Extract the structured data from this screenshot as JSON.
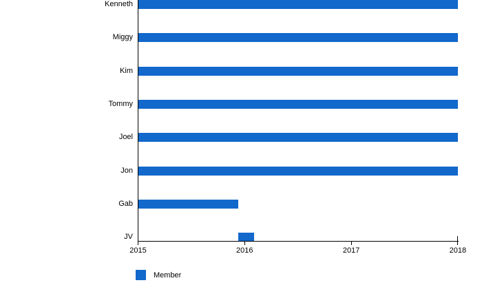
{
  "chart_data": {
    "type": "bar",
    "orientation": "horizontal",
    "title": "",
    "categories": [
      "Kenneth",
      "Miggy",
      "Kim",
      "Tommy",
      "Joel",
      "Jon",
      "Gab",
      "JV"
    ],
    "series": [
      {
        "name": "Member",
        "color": "#1268cb",
        "ranges": [
          {
            "category": "Kenneth",
            "start": 2015.0,
            "end": 2018.0
          },
          {
            "category": "Miggy",
            "start": 2015.0,
            "end": 2018.0
          },
          {
            "category": "Kim",
            "start": 2015.0,
            "end": 2018.0
          },
          {
            "category": "Tommy",
            "start": 2015.0,
            "end": 2018.0
          },
          {
            "category": "Joel",
            "start": 2015.0,
            "end": 2018.0
          },
          {
            "category": "Jon",
            "start": 2015.0,
            "end": 2018.0
          },
          {
            "category": "Gab",
            "start": 2015.0,
            "end": 2015.94
          },
          {
            "category": "JV",
            "start": 2015.94,
            "end": 2016.09
          }
        ]
      }
    ],
    "x_axis": {
      "min": 2015,
      "max": 2018,
      "tick_labels": [
        "2015",
        "2016",
        "2017",
        "2018"
      ],
      "tick_values": [
        2015,
        2016,
        2017,
        2018
      ]
    },
    "grid": false,
    "legend": {
      "position": "bottom-left",
      "entries": [
        {
          "label": "Member",
          "color": "#1268cb"
        }
      ]
    },
    "axis_color": "#000000",
    "background_color": "#ffffff"
  }
}
